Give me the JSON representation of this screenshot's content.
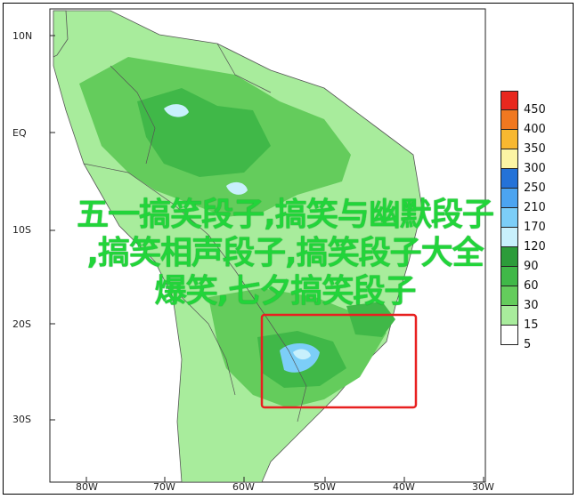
{
  "map": {
    "latitude_labels": [
      "10N",
      "EQ",
      "10S",
      "20S",
      "30S"
    ],
    "longitude_labels": [
      "80W",
      "70W",
      "60W",
      "50W",
      "40W",
      "30W"
    ],
    "highlight_color": "#e82020"
  },
  "legend": {
    "entries": [
      {
        "label": "450",
        "color": "#e8281e"
      },
      {
        "label": "400",
        "color": "#f07820"
      },
      {
        "label": "350",
        "color": "#f8b830"
      },
      {
        "label": "300",
        "color": "#fcf4a4"
      },
      {
        "label": "250",
        "color": "#2472d8"
      },
      {
        "label": "210",
        "color": "#4ca4f0"
      },
      {
        "label": "170",
        "color": "#7ccef8"
      },
      {
        "label": "120",
        "color": "#c8f0fc"
      },
      {
        "label": "90",
        "color": "#2c9c3a"
      },
      {
        "label": "60",
        "color": "#40b848"
      },
      {
        "label": "30",
        "color": "#64cc5c"
      },
      {
        "label": "15",
        "color": "#a8ec9c"
      },
      {
        "label": "5",
        "color": "#ffffff"
      }
    ]
  },
  "watermark": {
    "lines": [
      "五一搞笑段子,搞笑与幽默段子",
      ",搞笑相声段子,搞笑段子大全",
      "爆笑,七夕搞笑段子"
    ]
  }
}
